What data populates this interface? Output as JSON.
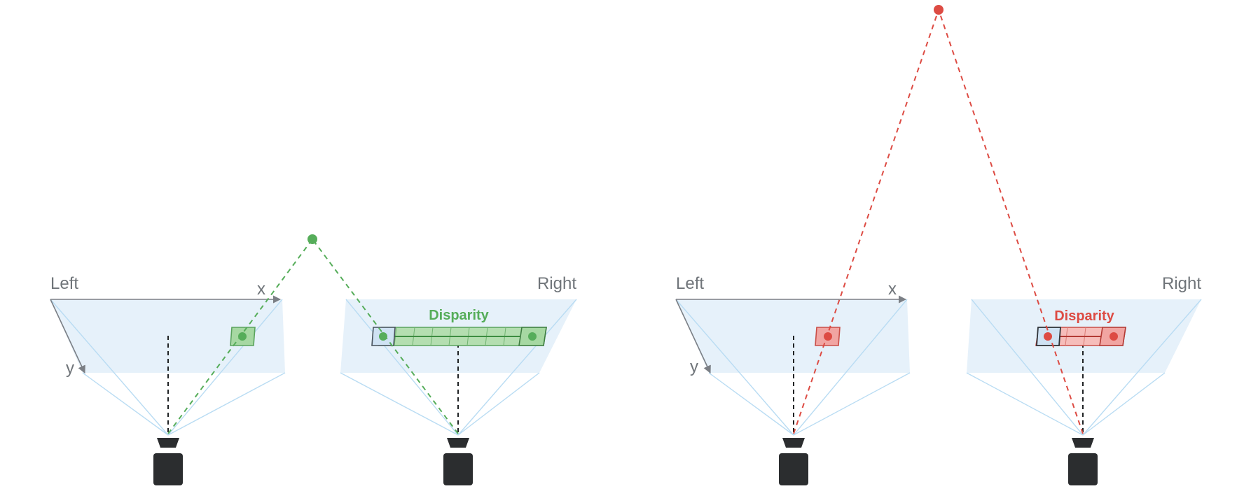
{
  "scenes": {
    "near": {
      "left_label": "Left",
      "right_label": "Right",
      "x_axis_label": "x",
      "y_axis_label": "y",
      "disparity_label": "Disparity",
      "color": "#56ad5a"
    },
    "far": {
      "left_label": "Left",
      "right_label": "Right",
      "x_axis_label": "x",
      "y_axis_label": "y",
      "disparity_label": "Disparity",
      "color": "#dd4b43"
    }
  },
  "colors": {
    "image_plane": "#e6f1fa",
    "frustum_rays": "#b9dcf3",
    "camera_body": "#2b2d2f",
    "reference_patch": "#cfe2f3"
  }
}
